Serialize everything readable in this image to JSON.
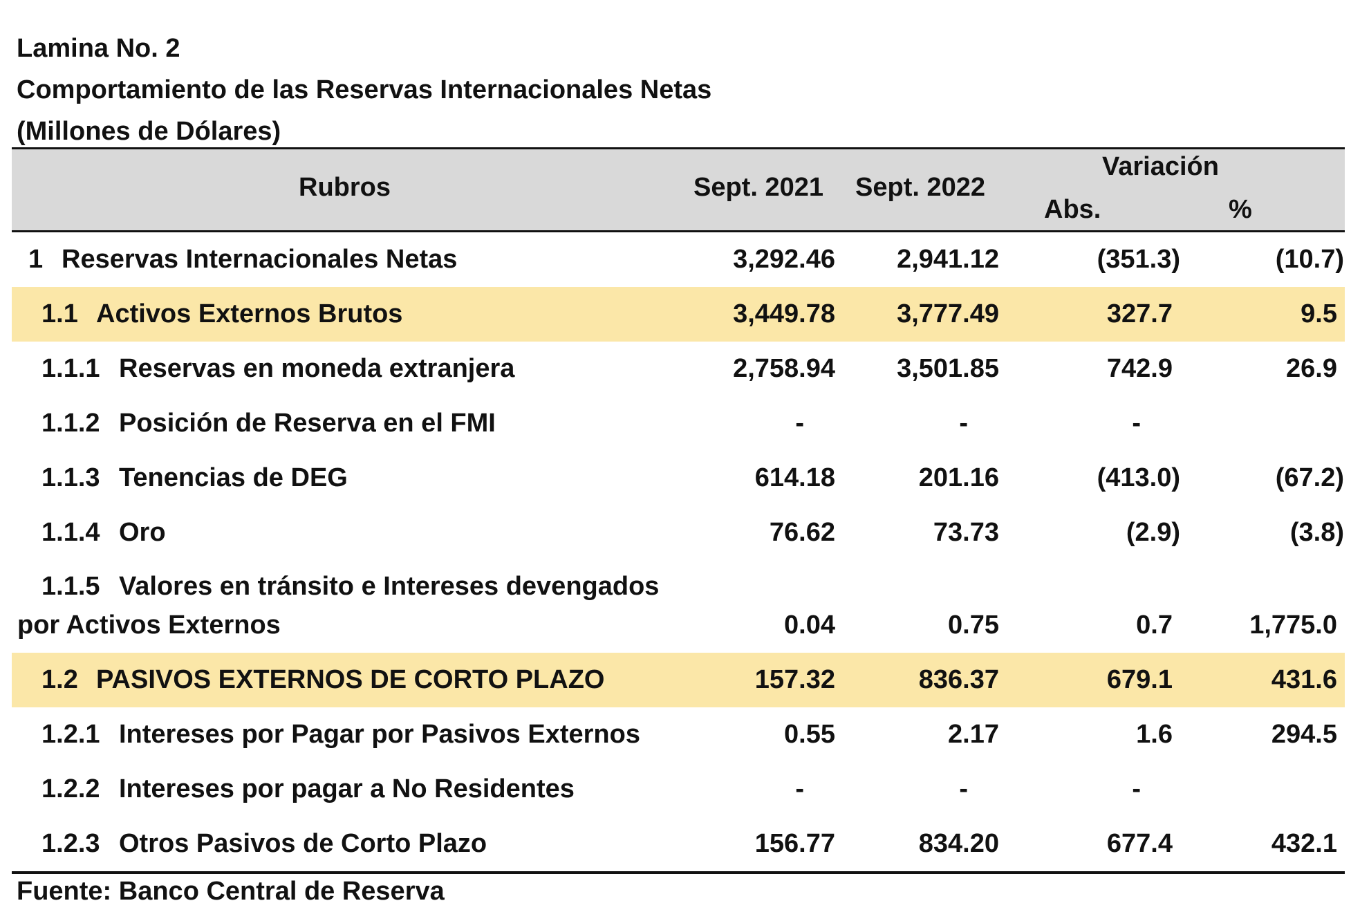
{
  "title_lines": [
    "Lamina No. 2",
    "Comportamiento de las Reservas Internacionales Netas",
    "(Millones de Dólares)"
  ],
  "header": {
    "rubros": "Rubros",
    "sept2021": "Sept. 2021",
    "sept2022": "Sept. 2022",
    "variacion": "Variación",
    "abs": "Abs.",
    "pct": "%"
  },
  "rows": [
    {
      "code": "1",
      "label": "Reservas Internacionales Netas",
      "v2021": "3,292.46",
      "v2022": "2,941.12",
      "abs": "(351.3)",
      "pct": "(10.7)",
      "highlight": false
    },
    {
      "code": "1.1",
      "label": "Activos Externos Brutos",
      "v2021": "3,449.78",
      "v2022": "3,777.49",
      "abs": "327.7",
      "pct": "9.5",
      "highlight": true
    },
    {
      "code": "1.1.1",
      "label": "Reservas en moneda extranjera",
      "v2021": "2,758.94",
      "v2022": "3,501.85",
      "abs": "742.9",
      "pct": "26.9",
      "highlight": false
    },
    {
      "code": "1.1.2",
      "label": "Posición de Reserva en el FMI",
      "v2021": "-",
      "v2022": "-",
      "abs": "-",
      "pct": "",
      "highlight": false
    },
    {
      "code": "1.1.3",
      "label": "Tenencias de DEG",
      "v2021": "614.18",
      "v2022": "201.16",
      "abs": "(413.0)",
      "pct": "(67.2)",
      "highlight": false
    },
    {
      "code": "1.1.4",
      "label": "Oro",
      "v2021": "76.62",
      "v2022": "73.73",
      "abs": "(2.9)",
      "pct": "(3.8)",
      "highlight": false
    },
    {
      "code": "1.1.5",
      "label": "Valores en tránsito e Intereses devengados",
      "label_line2": "por Activos Externos",
      "v2021": "0.04",
      "v2022": "0.75",
      "abs": "0.7",
      "pct": "1,775.0",
      "highlight": false
    },
    {
      "code": "1.2",
      "label": "PASIVOS EXTERNOS DE CORTO PLAZO",
      "v2021": "157.32",
      "v2022": "836.37",
      "abs": "679.1",
      "pct": "431.6",
      "highlight": true
    },
    {
      "code": "1.2.1",
      "label": "Intereses por Pagar por Pasivos Externos",
      "v2021": "0.55",
      "v2022": "2.17",
      "abs": "1.6",
      "pct": "294.5",
      "highlight": false
    },
    {
      "code": "1.2.2",
      "label": "Intereses por pagar a No Residentes",
      "v2021": "-",
      "v2022": "-",
      "abs": "-",
      "pct": "",
      "highlight": false
    },
    {
      "code": "1.2.3",
      "label": "Otros Pasivos de Corto Plazo",
      "v2021": "156.77",
      "v2022": "834.20",
      "abs": "677.4",
      "pct": "432.1",
      "highlight": false
    }
  ],
  "source": "Fuente: Banco Central de Reserva"
}
